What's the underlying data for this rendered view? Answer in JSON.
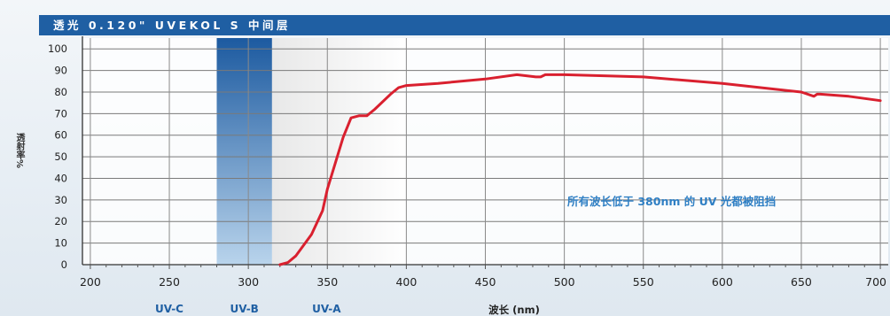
{
  "chart_data": {
    "type": "line",
    "title": "透光 0.120\" UVEKOL S 中间层",
    "xlabel": "波长 (nm)",
    "ylabel": "透射率%",
    "xlim": [
      195,
      705
    ],
    "ylim": [
      0,
      105
    ],
    "xticks": [
      200,
      250,
      300,
      350,
      400,
      450,
      500,
      550,
      600,
      650,
      700
    ],
    "yticks": [
      0,
      10,
      20,
      30,
      40,
      50,
      60,
      70,
      80,
      90,
      100
    ],
    "grid": true,
    "series": [
      {
        "color": "#d9202f",
        "x": [
          320,
          325,
          330,
          340,
          347,
          350,
          355,
          360,
          365,
          370,
          375,
          380,
          390,
          395,
          400,
          420,
          450,
          470,
          482,
          485,
          488,
          500,
          550,
          600,
          650,
          658,
          660,
          662,
          680,
          700
        ],
        "y": [
          0,
          1,
          4,
          14,
          25,
          35,
          47,
          59,
          68,
          69,
          69,
          72,
          79,
          82,
          83,
          84,
          86,
          88,
          87,
          87,
          88,
          88,
          87,
          84,
          80,
          78,
          79,
          79,
          78,
          76
        ]
      }
    ],
    "bands": [
      {
        "label": "UV-C",
        "range": [
          200,
          280
        ]
      },
      {
        "label": "UV-B",
        "range": [
          280,
          315
        ]
      },
      {
        "label": "UV-A",
        "range": [
          315,
          400
        ]
      }
    ],
    "annotation": "所有波长低于 380nm 的 UV 光都被阻挡",
    "colors": {
      "title_bar": "#1f5fa3",
      "line": "#d9202f",
      "band_label": "#1f5fa3",
      "annotation": "#2f7fc4",
      "uvb_band_top": "#1c5aa0",
      "uvb_band_bottom": "#b9d4ec"
    }
  }
}
